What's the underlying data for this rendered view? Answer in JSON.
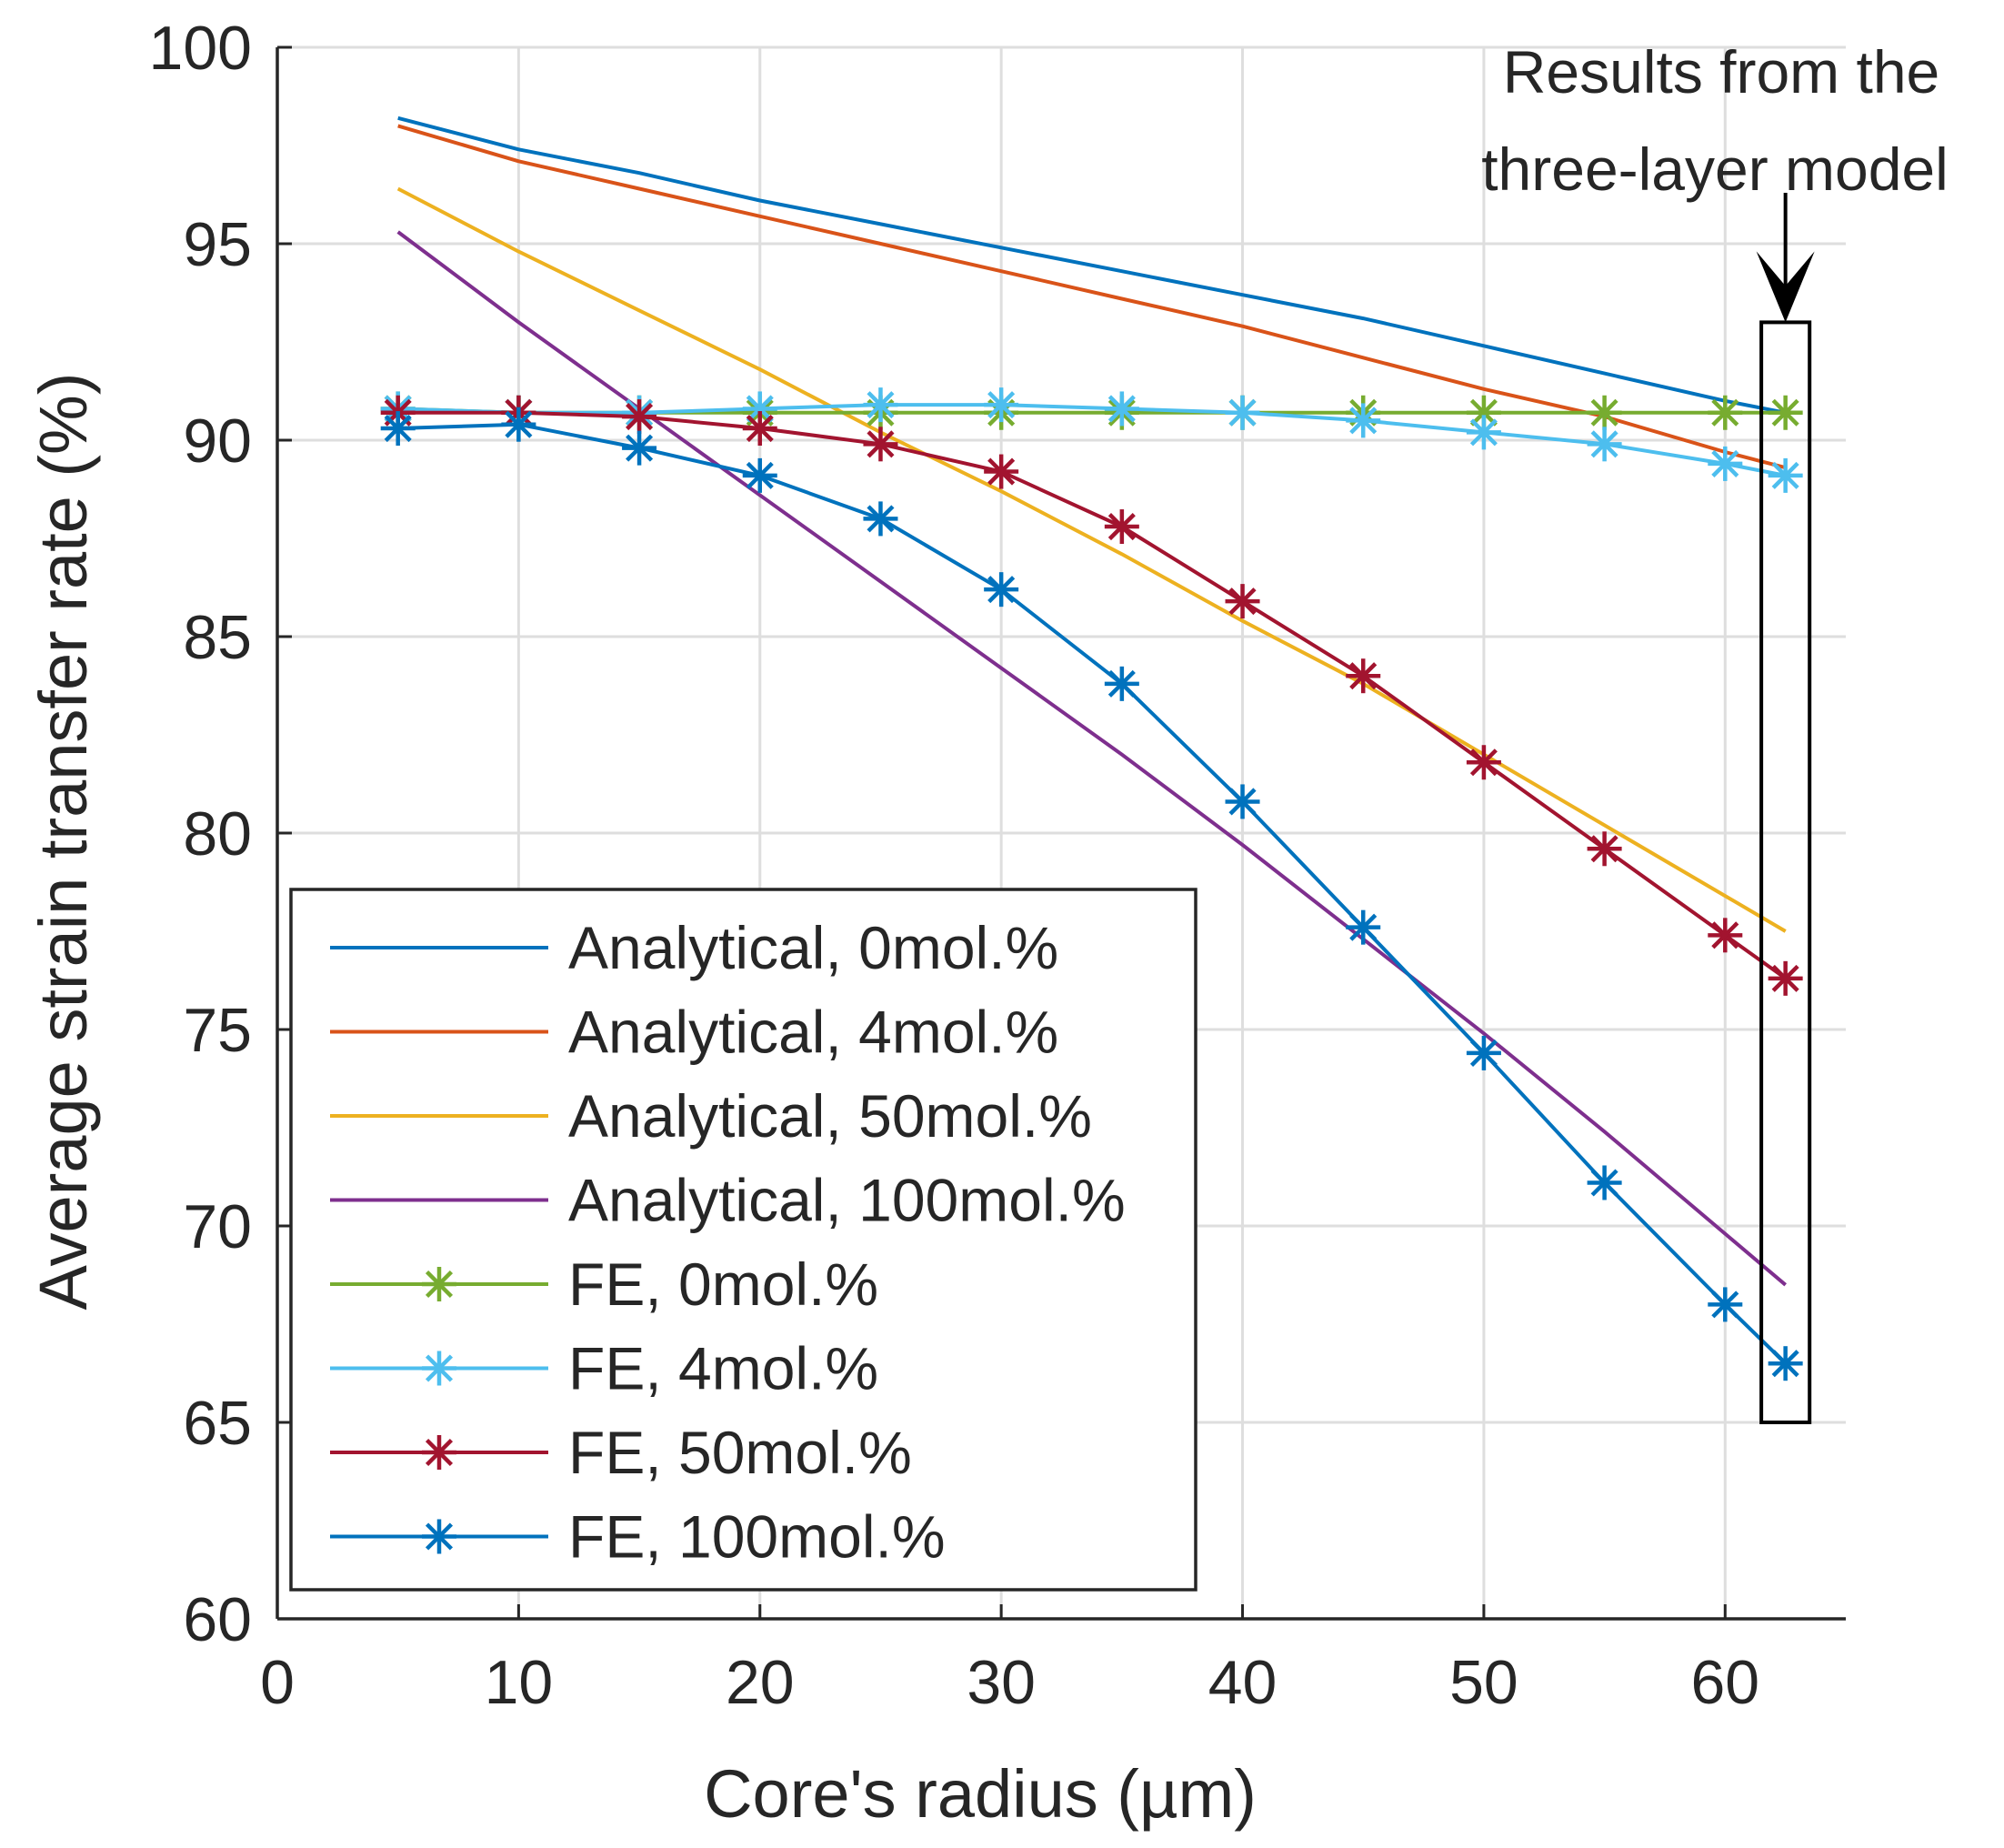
{
  "chart_data": {
    "type": "line",
    "xlabel": "Core's radius (µm)",
    "ylabel": "Average strain transfer rate (%)",
    "xlim": [
      0,
      65
    ],
    "ylim": [
      60,
      100
    ],
    "x_ticks": [
      "0",
      "10",
      "20",
      "30",
      "40",
      "50",
      "60"
    ],
    "y_ticks": [
      "60",
      "65",
      "70",
      "75",
      "80",
      "85",
      "90",
      "95",
      "100"
    ],
    "grid": true,
    "legend_position": "bottom-left",
    "series": [
      {
        "name": "Analytical, 0mol.%",
        "kind": "line",
        "color": "#0072BD",
        "x": [
          5,
          10,
          15,
          20,
          25,
          30,
          35,
          40,
          45,
          50,
          55,
          60,
          62.5
        ],
        "y": [
          98.2,
          97.4,
          96.8,
          96.1,
          95.5,
          94.9,
          94.3,
          93.7,
          93.1,
          92.4,
          91.7,
          91.0,
          90.7
        ]
      },
      {
        "name": "Analytical, 4mol.%",
        "kind": "line",
        "color": "#D95319",
        "x": [
          5,
          10,
          15,
          20,
          25,
          30,
          35,
          40,
          45,
          50,
          55,
          60,
          62.5
        ],
        "y": [
          98.0,
          97.1,
          96.4,
          95.7,
          95.0,
          94.3,
          93.6,
          92.9,
          92.1,
          91.3,
          90.6,
          89.7,
          89.3
        ]
      },
      {
        "name": "Analytical, 50mol.%",
        "kind": "line",
        "color": "#EDB120",
        "x": [
          5,
          10,
          15,
          20,
          25,
          30,
          35,
          40,
          45,
          50,
          55,
          60,
          62.5
        ],
        "y": [
          96.4,
          94.8,
          93.3,
          91.8,
          90.2,
          88.7,
          87.1,
          85.4,
          83.8,
          82.0,
          80.2,
          78.4,
          77.5
        ]
      },
      {
        "name": "Analytical, 100mol.%",
        "kind": "line",
        "color": "#7E2F8E",
        "x": [
          5,
          10,
          15,
          20,
          25,
          30,
          35,
          40,
          45,
          50,
          55,
          60,
          62.5
        ],
        "y": [
          95.3,
          93.0,
          90.8,
          88.6,
          86.4,
          84.2,
          82.0,
          79.7,
          77.3,
          74.9,
          72.4,
          69.8,
          68.5
        ]
      },
      {
        "name": "FE, 0mol.%",
        "kind": "line-marker",
        "color": "#77AC30",
        "x": [
          5,
          10,
          15,
          20,
          25,
          30,
          35,
          40,
          45,
          50,
          55,
          60,
          62.5
        ],
        "y": [
          90.8,
          90.7,
          90.7,
          90.7,
          90.7,
          90.7,
          90.7,
          90.7,
          90.7,
          90.7,
          90.7,
          90.7,
          90.7
        ]
      },
      {
        "name": "FE, 4mol.%",
        "kind": "line-marker",
        "color": "#4DBEEE",
        "x": [
          5,
          10,
          15,
          20,
          25,
          30,
          35,
          40,
          45,
          50,
          55,
          60,
          62.5
        ],
        "y": [
          90.8,
          90.7,
          90.7,
          90.8,
          90.9,
          90.9,
          90.8,
          90.7,
          90.5,
          90.2,
          89.9,
          89.4,
          89.1
        ]
      },
      {
        "name": "FE, 50mol.%",
        "kind": "line-marker",
        "color": "#A2142F",
        "x": [
          5,
          10,
          15,
          20,
          25,
          30,
          35,
          40,
          45,
          50,
          55,
          60,
          62.5
        ],
        "y": [
          90.7,
          90.7,
          90.6,
          90.3,
          89.9,
          89.2,
          87.8,
          85.9,
          84.0,
          81.8,
          79.6,
          77.4,
          76.3
        ]
      },
      {
        "name": "FE, 100mol.%",
        "kind": "line-marker",
        "color": "#0072BD",
        "x": [
          5,
          10,
          15,
          20,
          25,
          30,
          35,
          40,
          45,
          50,
          55,
          60,
          62.5
        ],
        "y": [
          90.3,
          90.4,
          89.8,
          89.1,
          88.0,
          86.2,
          83.8,
          80.8,
          77.6,
          74.4,
          71.1,
          68.0,
          66.5
        ]
      }
    ],
    "annotation": {
      "lines": [
        "Results from the",
        "three-layer model"
      ],
      "box_x": [
        61.5,
        63.5
      ],
      "box_y": [
        65,
        93
      ]
    }
  }
}
